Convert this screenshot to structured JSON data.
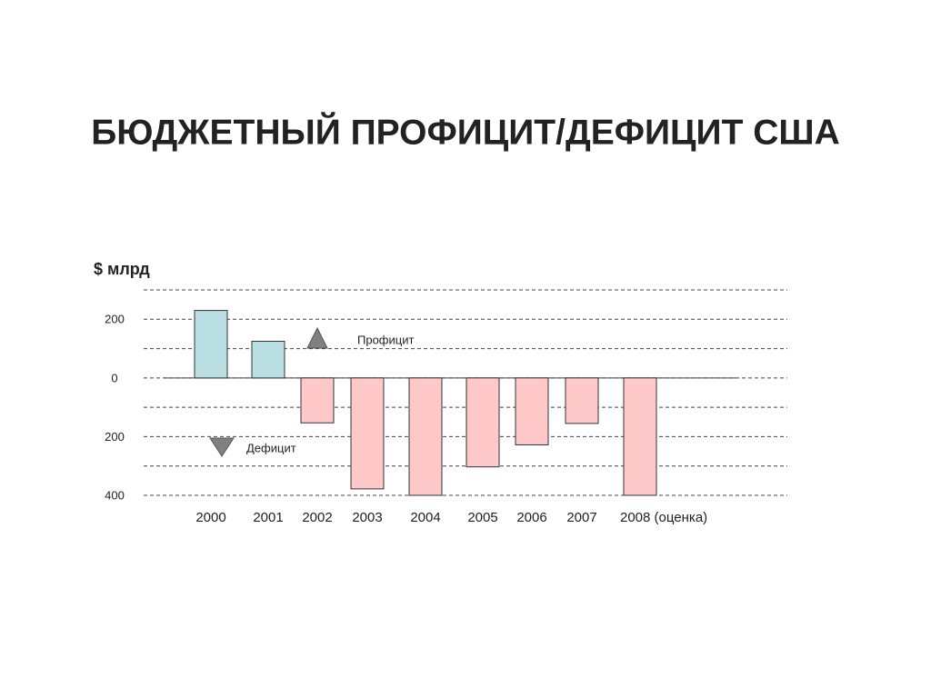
{
  "chart_data": {
    "type": "bar",
    "title": "БЮДЖЕТНЫЙ ПРОФИЦИТ/ДЕФИЦИТ США",
    "y_label": "$ млрд",
    "categories": [
      "2000",
      "2001",
      "2002",
      "2003",
      "2004",
      "2005",
      "2006",
      "2007",
      "2008 (оценка)"
    ],
    "values": [
      230,
      125,
      -153,
      -378,
      -400,
      -303,
      -228,
      -155,
      -400
    ],
    "positive_color": "#b9dfe2",
    "negative_color": "#ffc9c9",
    "ylim": [
      -400,
      300
    ],
    "yticks": [
      200,
      0,
      {
        "value": -200,
        "label": "200"
      },
      {
        "value": -400,
        "label": "400"
      }
    ],
    "grid_values": [
      300,
      200,
      100,
      0,
      -100,
      -200,
      -300,
      -400
    ],
    "grid": true,
    "annotations": [
      "Профицит",
      "Дефицит"
    ]
  }
}
